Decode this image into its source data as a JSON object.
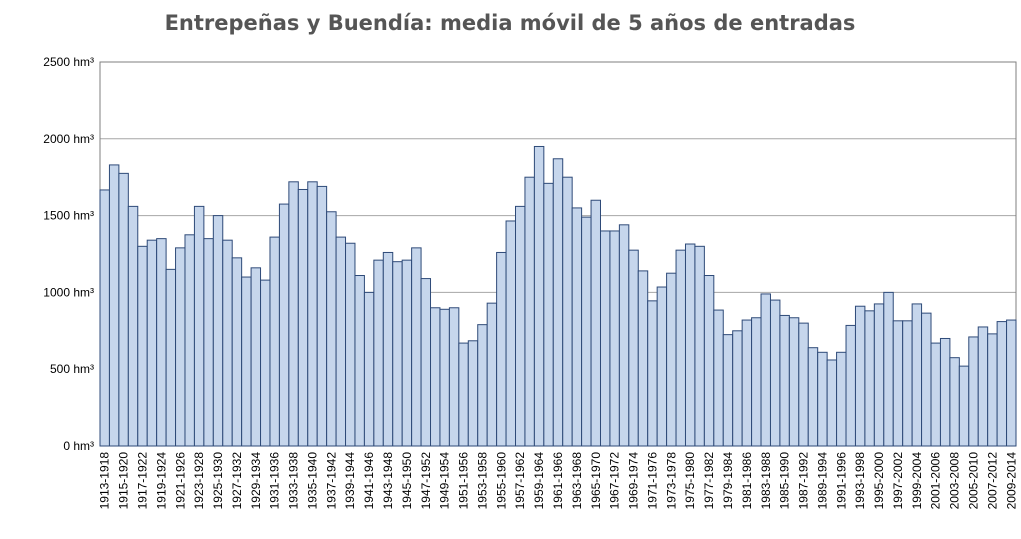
{
  "chart_data": {
    "type": "bar",
    "title": "Entrepeñas y Buendía: media móvil  de 5 años de entradas",
    "categories": [
      "1913-1918",
      null,
      "1915-1920",
      null,
      "1917-1922",
      null,
      "1919-1924",
      null,
      "1921-1926",
      null,
      "1923-1928",
      null,
      "1925-1930",
      null,
      "1927-1932",
      null,
      "1929-1934",
      null,
      "1931-1936",
      null,
      "1933-1938",
      null,
      "1935-1940",
      null,
      "1937-1942",
      null,
      "1939-1944",
      null,
      "1941-1946",
      null,
      "1943-1948",
      null,
      "1945-1950",
      null,
      "1947-1952",
      null,
      "1949-1954",
      null,
      "1951-1956",
      null,
      "1953-1958",
      null,
      "1955-1960",
      null,
      "1957-1962",
      null,
      "1959-1964",
      null,
      "1961-1966",
      null,
      "1963-1968",
      null,
      "1965-1970",
      null,
      "1967-1972",
      null,
      "1969-1974",
      null,
      "1971-1976",
      null,
      "1973-1978",
      null,
      "1975-1980",
      null,
      "1977-1982",
      null,
      "1979-1984",
      null,
      "1981-1986",
      null,
      "1983-1988",
      null,
      "1985-1990",
      null,
      "1987-1992",
      null,
      "1989-1994",
      null,
      "1991-1996",
      null,
      "1993-1998",
      null,
      "1995-2000",
      null,
      "1997-2002",
      null,
      "1999-2004",
      null,
      "2001-2006",
      null,
      "2003-2008",
      null,
      "2005-2010",
      null,
      "2007-2012",
      null,
      "2009-2014"
    ],
    "values": [
      1667,
      1830,
      1775,
      1560,
      1300,
      1340,
      1350,
      1150,
      1290,
      1375,
      1560,
      1350,
      1500,
      1340,
      1225,
      1100,
      1160,
      1080,
      1360,
      1575,
      1720,
      1670,
      1720,
      1690,
      1525,
      1360,
      1320,
      1110,
      1000,
      1210,
      1260,
      1200,
      1210,
      1290,
      1090,
      900,
      890,
      900,
      670,
      685,
      790,
      930,
      1260,
      1465,
      1560,
      1750,
      1950,
      1710,
      1870,
      1750,
      1550,
      1490,
      1600,
      1400,
      1400,
      1440,
      1275,
      1140,
      945,
      1035,
      1125,
      1275,
      1315,
      1300,
      1110,
      885,
      725,
      750,
      820,
      835,
      990,
      950,
      850,
      835,
      800,
      640,
      610,
      560,
      610,
      785,
      910,
      880,
      925,
      1000,
      815,
      815,
      925,
      865,
      670,
      700,
      575,
      520,
      710,
      775,
      730,
      810,
      820
    ],
    "color": "#c6d6ec",
    "ylim": [
      0,
      2500
    ],
    "yticks": [
      {
        "value": 0,
        "label": "0 hm³"
      },
      {
        "value": 500,
        "label": "500 hm³"
      },
      {
        "value": 1000,
        "label": "1000 hm³"
      },
      {
        "value": 1500,
        "label": "1500 hm³"
      },
      {
        "value": 2000,
        "label": "2000 hm³"
      },
      {
        "value": 2500,
        "label": "2500 hm³"
      }
    ],
    "grid": true
  }
}
